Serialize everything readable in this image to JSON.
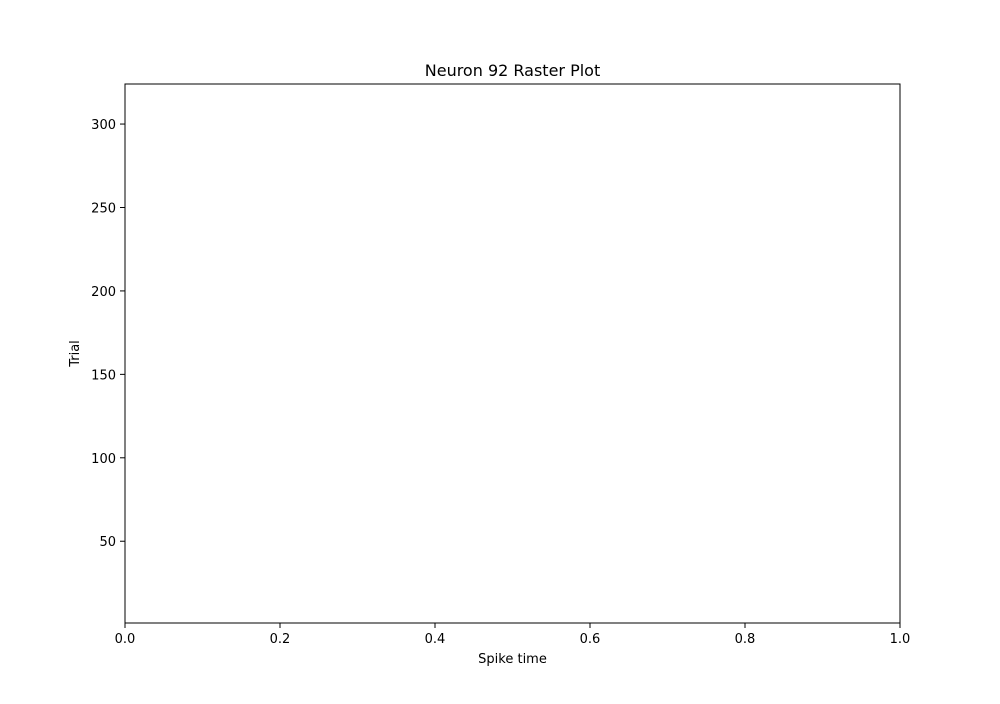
{
  "chart_data": {
    "type": "scatter",
    "title": "Neuron 92 Raster Plot",
    "xlabel": "Spike time",
    "ylabel": "Trial",
    "xlim": [
      0.0,
      1.0
    ],
    "ylim": [
      1,
      324
    ],
    "xticks": [
      0.0,
      0.2,
      0.4,
      0.6,
      0.8,
      1.0
    ],
    "xtick_labels": [
      "0.0",
      "0.2",
      "0.4",
      "0.6",
      "0.8",
      "1.0"
    ],
    "yticks": [
      50,
      100,
      150,
      200,
      250,
      300
    ],
    "ytick_labels": [
      "50",
      "100",
      "150",
      "200",
      "250",
      "300"
    ],
    "grid": false,
    "legend": false,
    "series": [],
    "colors": {
      "axes": "#000000",
      "background": "#ffffff",
      "text": "#000000"
    }
  }
}
